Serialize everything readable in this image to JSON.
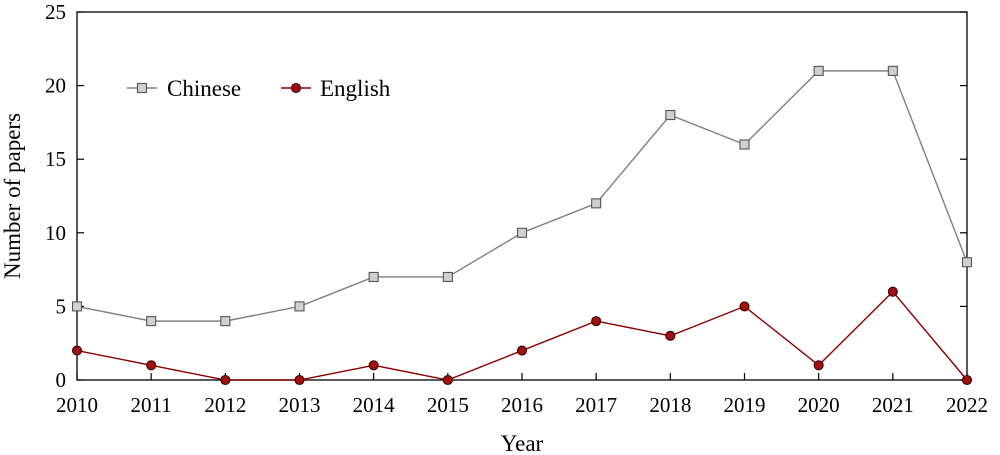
{
  "chart_data": {
    "type": "line",
    "title": "",
    "xlabel": "Year",
    "ylabel": "Number of papers",
    "x": [
      "2010",
      "2011",
      "2012",
      "2013",
      "2014",
      "2015",
      "2016",
      "2017",
      "2018",
      "2019",
      "2020",
      "2021",
      "2022"
    ],
    "yticks": [
      "0",
      "5",
      "10",
      "15",
      "20",
      "25"
    ],
    "ylim": [
      0,
      25
    ],
    "grid": false,
    "legend_position": "top-left",
    "series": [
      {
        "name": "Chinese",
        "marker": "square",
        "color": "#808080",
        "marker_fill": "#d0d0d0",
        "values": [
          5,
          4,
          4,
          5,
          7,
          7,
          10,
          12,
          18,
          16,
          21,
          21,
          8
        ]
      },
      {
        "name": "English",
        "marker": "circle",
        "color": "#8b0000",
        "marker_fill": "#a01010",
        "values": [
          2,
          1,
          0,
          0,
          1,
          0,
          2,
          4,
          3,
          5,
          1,
          6,
          0
        ]
      }
    ]
  }
}
